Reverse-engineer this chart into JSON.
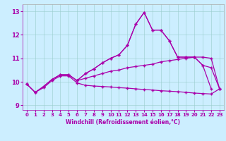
{
  "xlabel": "Windchill (Refroidissement éolien,°C)",
  "xlim": [
    -0.5,
    23.5
  ],
  "ylim": [
    8.8,
    13.3
  ],
  "yticks": [
    9,
    10,
    11,
    12,
    13
  ],
  "xticks": [
    0,
    1,
    2,
    3,
    4,
    5,
    6,
    7,
    8,
    9,
    10,
    11,
    12,
    13,
    14,
    15,
    16,
    17,
    18,
    19,
    20,
    21,
    22,
    23
  ],
  "bg_color": "#cceeff",
  "line_color": "#aa00aa",
  "line1_x": [
    0,
    1,
    2,
    3,
    4,
    5,
    6,
    7,
    8,
    9,
    10,
    11,
    12,
    13,
    14,
    15,
    16,
    17,
    18,
    19,
    20,
    21,
    22
  ],
  "line1_y": [
    9.9,
    9.55,
    9.8,
    10.1,
    10.3,
    10.3,
    10.05,
    10.35,
    10.55,
    10.8,
    11.0,
    11.15,
    11.55,
    12.45,
    12.95,
    12.2,
    12.2,
    11.75,
    11.05,
    11.05,
    11.05,
    10.7,
    9.7
  ],
  "line2_x": [
    0,
    1,
    2,
    3,
    4,
    5,
    6,
    7,
    8,
    9,
    10,
    11,
    12,
    13,
    14,
    15,
    16,
    17,
    18,
    19,
    20,
    21,
    22,
    23
  ],
  "line2_y": [
    9.9,
    9.55,
    9.8,
    10.1,
    10.3,
    10.3,
    10.05,
    10.15,
    10.25,
    10.35,
    10.45,
    10.5,
    10.6,
    10.65,
    10.7,
    10.75,
    10.85,
    10.9,
    10.95,
    11.0,
    11.05,
    11.05,
    11.0,
    9.7
  ],
  "line3_x": [
    0,
    1,
    2,
    3,
    4,
    5,
    6,
    7,
    8,
    9,
    10,
    11,
    12,
    13,
    14,
    15,
    16,
    17,
    18,
    19,
    20,
    21,
    22,
    23
  ],
  "line3_y": [
    9.9,
    9.55,
    9.75,
    10.05,
    10.25,
    10.25,
    9.95,
    9.85,
    9.82,
    9.8,
    9.78,
    9.75,
    9.73,
    9.7,
    9.67,
    9.65,
    9.62,
    9.6,
    9.58,
    9.55,
    9.52,
    9.5,
    9.48,
    9.7
  ],
  "line4_x": [
    6,
    7,
    8,
    9,
    10,
    11,
    12,
    13,
    14,
    15,
    16,
    17,
    18,
    19,
    20,
    21,
    22,
    23
  ],
  "line4_y": [
    10.05,
    10.35,
    10.55,
    10.8,
    11.0,
    11.15,
    11.55,
    12.45,
    12.95,
    12.2,
    12.2,
    11.75,
    11.05,
    11.05,
    11.05,
    10.7,
    10.6,
    9.7
  ]
}
